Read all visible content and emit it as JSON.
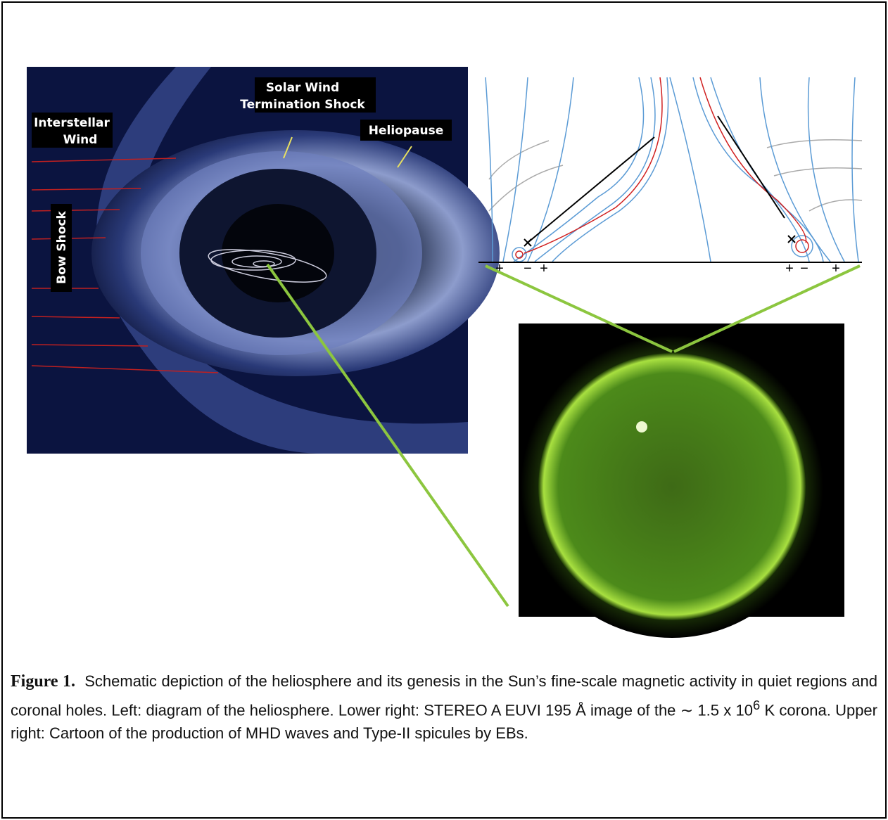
{
  "heliosphere": {
    "labels": {
      "termination_shock": [
        "Solar Wind",
        "Termination Shock"
      ],
      "interstellar_wind": [
        "Interstellar",
        "Wind"
      ],
      "heliopause": "Heliopause",
      "bow_shock": "Bow Shock"
    }
  },
  "cartoon": {
    "left_signs": [
      "+",
      "−",
      "+"
    ],
    "right_signs": [
      "+",
      "−",
      "+"
    ]
  },
  "caption": {
    "label": "Figure 1.",
    "text_before": "Schematic depiction of the heliosphere and its genesis in the Sun’s fine-scale magnetic activity in quiet regions and coronal holes.  Left: diagram of the heliosphere.  Lower right: STEREO A EUVI 195 Å image of the ∼ 1.5 x 10",
    "superscript": "6",
    "text_after": " K corona.  Upper right: Cartoon of the production of MHD waves and Type-II spicules by EBs."
  }
}
